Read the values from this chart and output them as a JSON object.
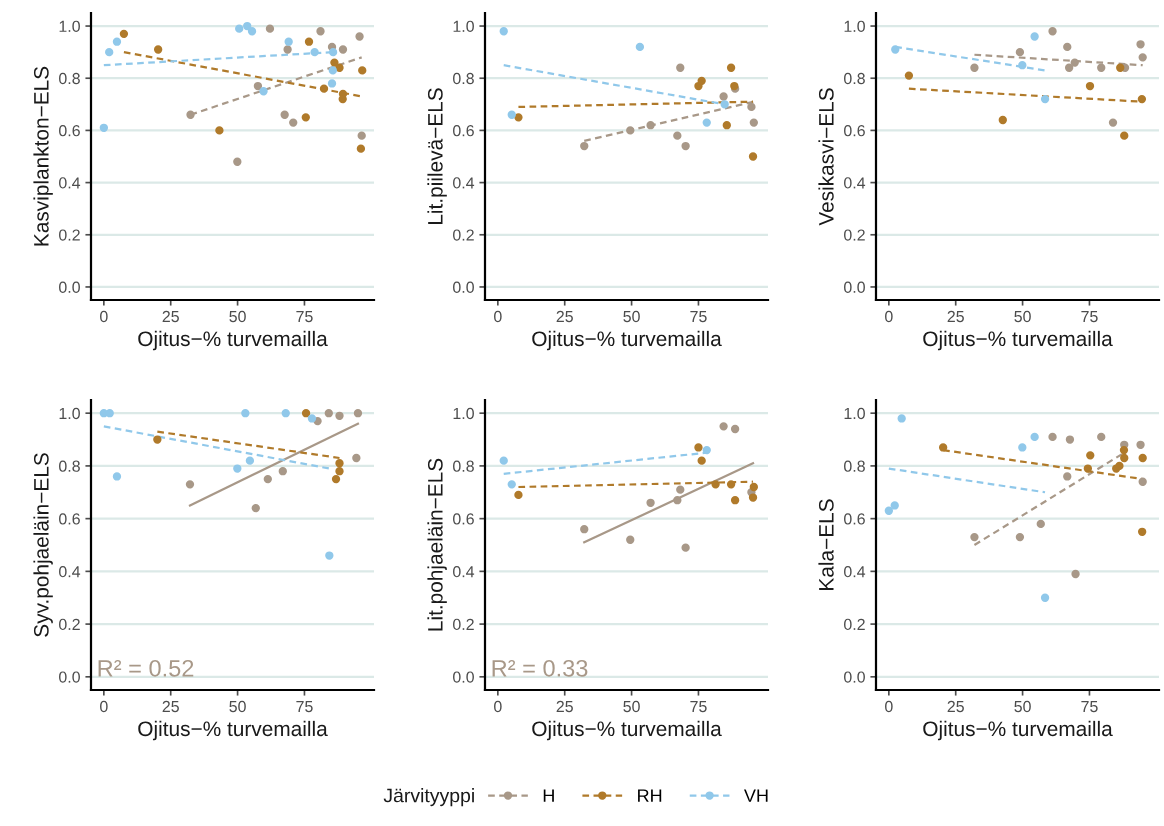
{
  "chart_data": [
    {
      "type": "scatter",
      "ylabel": "Kasviplankton−ELS",
      "xlabel": "Ojitus−% turvemailla",
      "xlim": [
        -4.8,
        101
      ],
      "ylim": [
        -0.05,
        1.05
      ],
      "xticks": [
        0,
        25,
        50,
        75
      ],
      "yticks": [
        {
          "value": 0,
          "label": "0.0"
        },
        {
          "value": 0.2,
          "label": "0.2"
        },
        {
          "value": 0.4,
          "label": "0.4"
        },
        {
          "value": 0.6,
          "label": "0.6"
        },
        {
          "value": 0.8,
          "label": "0.8"
        },
        {
          "value": 1,
          "label": "1.0"
        }
      ],
      "grid": "y",
      "marker": "circle",
      "legend": "bottom",
      "legend_title": "Järvityyppi",
      "series": [
        {
          "name": "H",
          "color": "#a89888",
          "x": [
            32.4,
            49.9,
            62.1,
            57.6,
            68.7,
            67.6,
            70.8,
            81.0,
            85.3,
            89.4,
            95.6,
            96.4
          ],
          "values": [
            0.66,
            0.48,
            0.99,
            0.77,
            0.91,
            0.66,
            0.63,
            0.98,
            0.92,
            0.91,
            0.96,
            0.58
          ]
        },
        {
          "name": "RH",
          "color": "#b07a2a",
          "x": [
            7.5,
            20.3,
            43.2,
            76.7,
            75.5,
            82.3,
            86.2,
            88.1,
            89.4,
            89.3,
            96.6,
            96.1
          ],
          "values": [
            0.97,
            0.91,
            0.6,
            0.94,
            0.65,
            0.76,
            0.86,
            0.84,
            0.74,
            0.72,
            0.83,
            0.53
          ]
        },
        {
          "name": "VH",
          "color": "#90c8ea",
          "x": [
            0,
            2.0,
            4.9,
            50.6,
            53.6,
            55.4,
            59.7,
            69.1,
            78.8,
            85.7,
            85.6,
            85.3
          ],
          "values": [
            0.61,
            0.9,
            0.94,
            0.99,
            1.0,
            0.98,
            0.75,
            0.94,
            0.9,
            0.9,
            0.83,
            0.78
          ]
        },
        {
          "type": "line",
          "marker": "none",
          "color": "#a89888",
          "line_style": "dashed",
          "x": [
            32.4,
            96.4
          ],
          "values": [
            0.66,
            0.88
          ]
        },
        {
          "type": "line",
          "marker": "none",
          "color": "#b07a2a",
          "line_style": "dashed",
          "x": [
            7.5,
            96.6
          ],
          "values": [
            0.9,
            0.73
          ]
        },
        {
          "type": "line",
          "marker": "none",
          "color": "#90c8ea",
          "line_style": "dashed",
          "x": [
            0,
            85.7
          ],
          "values": [
            0.85,
            0.9
          ]
        }
      ]
    },
    {
      "type": "scatter",
      "ylabel": "Lit.piilevä−ELS",
      "xlabel": "Ojitus−% turvemailla",
      "xlim": [
        -4.8,
        101
      ],
      "ylim": [
        -0.05,
        1.05
      ],
      "xticks": [
        0,
        25,
        50,
        75
      ],
      "yticks": [
        {
          "value": 0,
          "label": "0.0"
        },
        {
          "value": 0.2,
          "label": "0.2"
        },
        {
          "value": 0.4,
          "label": "0.4"
        },
        {
          "value": 0.6,
          "label": "0.6"
        },
        {
          "value": 0.8,
          "label": "0.8"
        },
        {
          "value": 1,
          "label": "1.0"
        }
      ],
      "grid": "y",
      "marker": "circle",
      "series": [
        {
          "color": "#a89888",
          "x": [
            32.3,
            49.5,
            57.1,
            68.2,
            67.1,
            70.2,
            84.4,
            88.7,
            94.8,
            95.7
          ],
          "values": [
            0.54,
            0.6,
            0.62,
            0.84,
            0.58,
            0.54,
            0.73,
            0.76,
            0.69,
            0.63
          ]
        },
        {
          "color": "#b07a2a",
          "x": [
            7.7,
            75.0,
            76.2,
            87.2,
            88.4,
            85.6,
            95.4
          ],
          "values": [
            0.65,
            0.77,
            0.79,
            0.84,
            0.77,
            0.62,
            0.5
          ]
        },
        {
          "color": "#90c8ea",
          "x": [
            2.2,
            5.2,
            53.1,
            78.1,
            84.8
          ],
          "values": [
            0.98,
            0.66,
            0.92,
            0.63,
            0.7
          ]
        },
        {
          "type": "line",
          "marker": "none",
          "color": "#a89888",
          "line_style": "dashed",
          "x": [
            32.3,
            95.7
          ],
          "values": [
            0.56,
            0.71
          ]
        },
        {
          "type": "line",
          "marker": "none",
          "color": "#b07a2a",
          "line_style": "dashed",
          "x": [
            7.7,
            95.4
          ],
          "values": [
            0.69,
            0.71
          ]
        },
        {
          "type": "line",
          "marker": "none",
          "color": "#90c8ea",
          "line_style": "dashed",
          "x": [
            2.2,
            84.8
          ],
          "values": [
            0.85,
            0.7
          ]
        }
      ]
    },
    {
      "type": "scatter",
      "ylabel": "Vesikasvi−ELS",
      "xlabel": "Ojitus−% turvemailla",
      "xlim": [
        -4.8,
        101
      ],
      "ylim": [
        -0.05,
        1.05
      ],
      "xticks": [
        0,
        25,
        50,
        75
      ],
      "yticks": [
        {
          "value": 0,
          "label": "0.0"
        },
        {
          "value": 0.2,
          "label": "0.2"
        },
        {
          "value": 0.4,
          "label": "0.4"
        },
        {
          "value": 0.6,
          "label": "0.6"
        },
        {
          "value": 0.8,
          "label": "0.8"
        },
        {
          "value": 1,
          "label": "1.0"
        }
      ],
      "grid": "y",
      "marker": "circle",
      "series": [
        {
          "color": "#a89888",
          "x": [
            32.0,
            49.0,
            61.2,
            66.7,
            67.4,
            69.5,
            79.4,
            83.8,
            88.3,
            94.1,
            94.9
          ],
          "values": [
            0.84,
            0.9,
            0.98,
            0.92,
            0.84,
            0.86,
            0.84,
            0.63,
            0.84,
            0.93,
            0.88
          ]
        },
        {
          "color": "#b07a2a",
          "x": [
            7.5,
            42.6,
            75.2,
            86.5,
            88.0,
            94.6
          ],
          "values": [
            0.81,
            0.64,
            0.77,
            0.84,
            0.58,
            0.72
          ]
        },
        {
          "color": "#90c8ea",
          "x": [
            2.4,
            49.9,
            54.5,
            58.4
          ],
          "values": [
            0.91,
            0.85,
            0.96,
            0.72
          ]
        },
        {
          "type": "line",
          "marker": "none",
          "color": "#a89888",
          "line_style": "dashed",
          "x": [
            32.0,
            94.9
          ],
          "values": [
            0.89,
            0.85
          ]
        },
        {
          "type": "line",
          "marker": "none",
          "color": "#b07a2a",
          "line_style": "dashed",
          "x": [
            7.5,
            94.6
          ],
          "values": [
            0.76,
            0.71
          ]
        },
        {
          "type": "line",
          "marker": "none",
          "color": "#90c8ea",
          "line_style": "dashed",
          "x": [
            2.4,
            58.4
          ],
          "values": [
            0.92,
            0.83
          ]
        }
      ]
    },
    {
      "type": "scatter",
      "ylabel": "Syv.pohjaeläin−ELS",
      "xlabel": "Ojitus−% turvemailla",
      "xlim": [
        -4.8,
        101
      ],
      "ylim": [
        -0.05,
        1.05
      ],
      "xticks": [
        0,
        25,
        50,
        75
      ],
      "yticks": [
        {
          "value": 0,
          "label": "0.0"
        },
        {
          "value": 0.2,
          "label": "0.2"
        },
        {
          "value": 0.4,
          "label": "0.4"
        },
        {
          "value": 0.6,
          "label": "0.6"
        },
        {
          "value": 0.8,
          "label": "0.8"
        },
        {
          "value": 1,
          "label": "1.0"
        }
      ],
      "grid": "y",
      "marker": "circle",
      "annotations": [
        "R² = 0.52"
      ],
      "series": [
        {
          "color": "#a89888",
          "x": [
            32.2,
            56.8,
            61.3,
            66.9,
            79.9,
            84.1,
            88.1,
            95.0,
            94.4
          ],
          "values": [
            0.73,
            0.64,
            0.75,
            0.78,
            0.97,
            1.0,
            0.99,
            1.0,
            0.83
          ]
        },
        {
          "color": "#b07a2a",
          "x": [
            20.0,
            75.6,
            88.1,
            88.1,
            86.8
          ],
          "values": [
            0.9,
            1.0,
            0.81,
            0.78,
            0.75
          ]
        },
        {
          "color": "#90c8ea",
          "x": [
            0,
            2.2,
            4.9,
            52.9,
            49.9,
            54.6,
            68.0,
            77.8,
            84.3
          ],
          "values": [
            1.0,
            1.0,
            0.76,
            1.0,
            0.79,
            0.82,
            1.0,
            0.98,
            0.46
          ]
        },
        {
          "type": "line",
          "marker": "none",
          "color": "#a89888",
          "line_style": "solid",
          "x": [
            32.2,
            95.0
          ],
          "values": [
            0.65,
            0.96
          ]
        },
        {
          "type": "line",
          "marker": "none",
          "color": "#b07a2a",
          "line_style": "dashed",
          "x": [
            20.0,
            88.1
          ],
          "values": [
            0.93,
            0.83
          ]
        },
        {
          "type": "line",
          "marker": "none",
          "color": "#90c8ea",
          "line_style": "dashed",
          "x": [
            0,
            84.3
          ],
          "values": [
            0.95,
            0.79
          ]
        }
      ]
    },
    {
      "type": "scatter",
      "ylabel": "Lit.pohjaeläin−ELS",
      "xlabel": "Ojitus−% turvemailla",
      "xlim": [
        -4.8,
        101
      ],
      "ylim": [
        -0.05,
        1.05
      ],
      "xticks": [
        0,
        25,
        50,
        75
      ],
      "yticks": [
        {
          "value": 0,
          "label": "0.0"
        },
        {
          "value": 0.2,
          "label": "0.2"
        },
        {
          "value": 0.4,
          "label": "0.4"
        },
        {
          "value": 0.6,
          "label": "0.6"
        },
        {
          "value": 0.8,
          "label": "0.8"
        },
        {
          "value": 1,
          "label": "1.0"
        }
      ],
      "grid": "y",
      "marker": "circle",
      "annotations": [
        "R² = 0.33"
      ],
      "series": [
        {
          "color": "#a89888",
          "x": [
            32.3,
            49.5,
            57.1,
            67.1,
            68.2,
            70.2,
            84.4,
            88.7,
            94.8
          ],
          "values": [
            0.56,
            0.52,
            0.66,
            0.67,
            0.71,
            0.49,
            0.95,
            0.94,
            0.7
          ]
        },
        {
          "color": "#b07a2a",
          "x": [
            7.7,
            75.0,
            76.2,
            81.4,
            87.2,
            88.7,
            95.7,
            95.4
          ],
          "values": [
            0.69,
            0.87,
            0.82,
            0.73,
            0.73,
            0.67,
            0.72,
            0.68
          ]
        },
        {
          "color": "#90c8ea",
          "x": [
            2.2,
            5.2,
            78.1
          ],
          "values": [
            0.82,
            0.73,
            0.86
          ]
        },
        {
          "type": "line",
          "marker": "none",
          "color": "#a89888",
          "line_style": "solid",
          "x": [
            32.3,
            95.4
          ],
          "values": [
            0.51,
            0.81
          ]
        },
        {
          "type": "line",
          "marker": "none",
          "color": "#b07a2a",
          "line_style": "dashed",
          "x": [
            7.7,
            95.4
          ],
          "values": [
            0.72,
            0.74
          ]
        },
        {
          "type": "line",
          "marker": "none",
          "color": "#90c8ea",
          "line_style": "dashed",
          "x": [
            2.2,
            78.1
          ],
          "values": [
            0.77,
            0.85
          ]
        }
      ]
    },
    {
      "type": "scatter",
      "ylabel": "Kala−ELS",
      "xlabel": "Ojitus−% turvemailla",
      "xlim": [
        -4.8,
        101
      ],
      "ylim": [
        -0.05,
        1.05
      ],
      "xticks": [
        0,
        25,
        50,
        75
      ],
      "yticks": [
        {
          "value": 0,
          "label": "0.0"
        },
        {
          "value": 0.2,
          "label": "0.2"
        },
        {
          "value": 0.4,
          "label": "0.4"
        },
        {
          "value": 0.6,
          "label": "0.6"
        },
        {
          "value": 0.8,
          "label": "0.8"
        },
        {
          "value": 1,
          "label": "1.0"
        }
      ],
      "grid": "y",
      "marker": "circle",
      "series": [
        {
          "color": "#a89888",
          "x": [
            32.0,
            49.0,
            56.8,
            61.2,
            66.7,
            67.7,
            69.8,
            79.4,
            88.0,
            94.1,
            94.9
          ],
          "values": [
            0.53,
            0.53,
            0.58,
            0.91,
            0.76,
            0.9,
            0.39,
            0.91,
            0.88,
            0.88,
            0.74
          ]
        },
        {
          "color": "#b07a2a",
          "x": [
            20.3,
            74.4,
            75.3,
            85.0,
            86.2,
            87.9,
            88.0,
            94.9,
            94.7
          ],
          "values": [
            0.87,
            0.79,
            0.84,
            0.79,
            0.8,
            0.86,
            0.83,
            0.83,
            0.55
          ]
        },
        {
          "color": "#90c8ea",
          "x": [
            0,
            2.2,
            4.8,
            49.9,
            54.5,
            58.4
          ],
          "values": [
            0.63,
            0.65,
            0.98,
            0.87,
            0.91,
            0.3
          ]
        },
        {
          "type": "line",
          "marker": "none",
          "color": "#a89888",
          "line_style": "dashed",
          "x": [
            32.0,
            88.0
          ],
          "values": [
            0.5,
            0.85
          ]
        },
        {
          "type": "line",
          "marker": "none",
          "color": "#b07a2a",
          "line_style": "dashed",
          "x": [
            20.3,
            94.9
          ],
          "values": [
            0.86,
            0.75
          ]
        },
        {
          "type": "line",
          "marker": "none",
          "color": "#90c8ea",
          "line_style": "dashed",
          "x": [
            0,
            58.4
          ],
          "values": [
            0.79,
            0.7
          ]
        }
      ]
    }
  ]
}
